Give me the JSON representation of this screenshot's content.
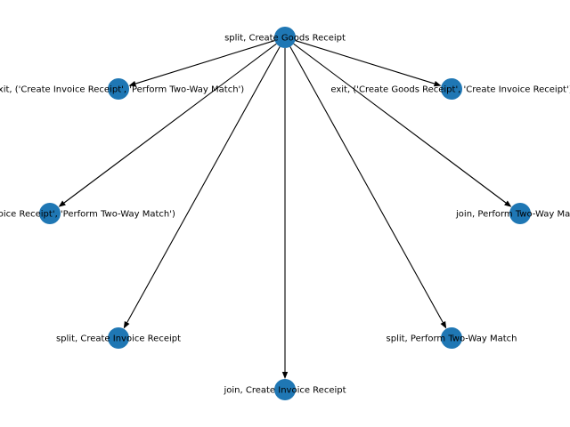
{
  "graph": {
    "root": "n0",
    "colors": {
      "node": "#1f77b4",
      "edge": "#000000",
      "label": "#000000",
      "background": "#ffffff"
    },
    "nodes": [
      {
        "id": "n0",
        "label": "split, Create Goods Receipt"
      },
      {
        "id": "n1",
        "label": "exit, ('Create Invoice Receipt', 'Perform Two-Way Match')"
      },
      {
        "id": "n2",
        "label": "exit, ('Create Goods Receipt', 'Create Invoice Receipt')"
      },
      {
        "id": "n3",
        "label": "join, ('Create Invoice Receipt', 'Perform Two-Way Match')"
      },
      {
        "id": "n4",
        "label": "join, Perform Two-Way Match"
      },
      {
        "id": "n5",
        "label": "split, Create Invoice Receipt"
      },
      {
        "id": "n6",
        "label": "split, Perform Two-Way Match"
      },
      {
        "id": "n7",
        "label": "join, Create Invoice Receipt"
      }
    ],
    "edges": [
      {
        "from": "n0",
        "to": "n1"
      },
      {
        "from": "n0",
        "to": "n2"
      },
      {
        "from": "n0",
        "to": "n3"
      },
      {
        "from": "n0",
        "to": "n4"
      },
      {
        "from": "n0",
        "to": "n5"
      },
      {
        "from": "n0",
        "to": "n6"
      },
      {
        "from": "n0",
        "to": "n7"
      }
    ]
  }
}
